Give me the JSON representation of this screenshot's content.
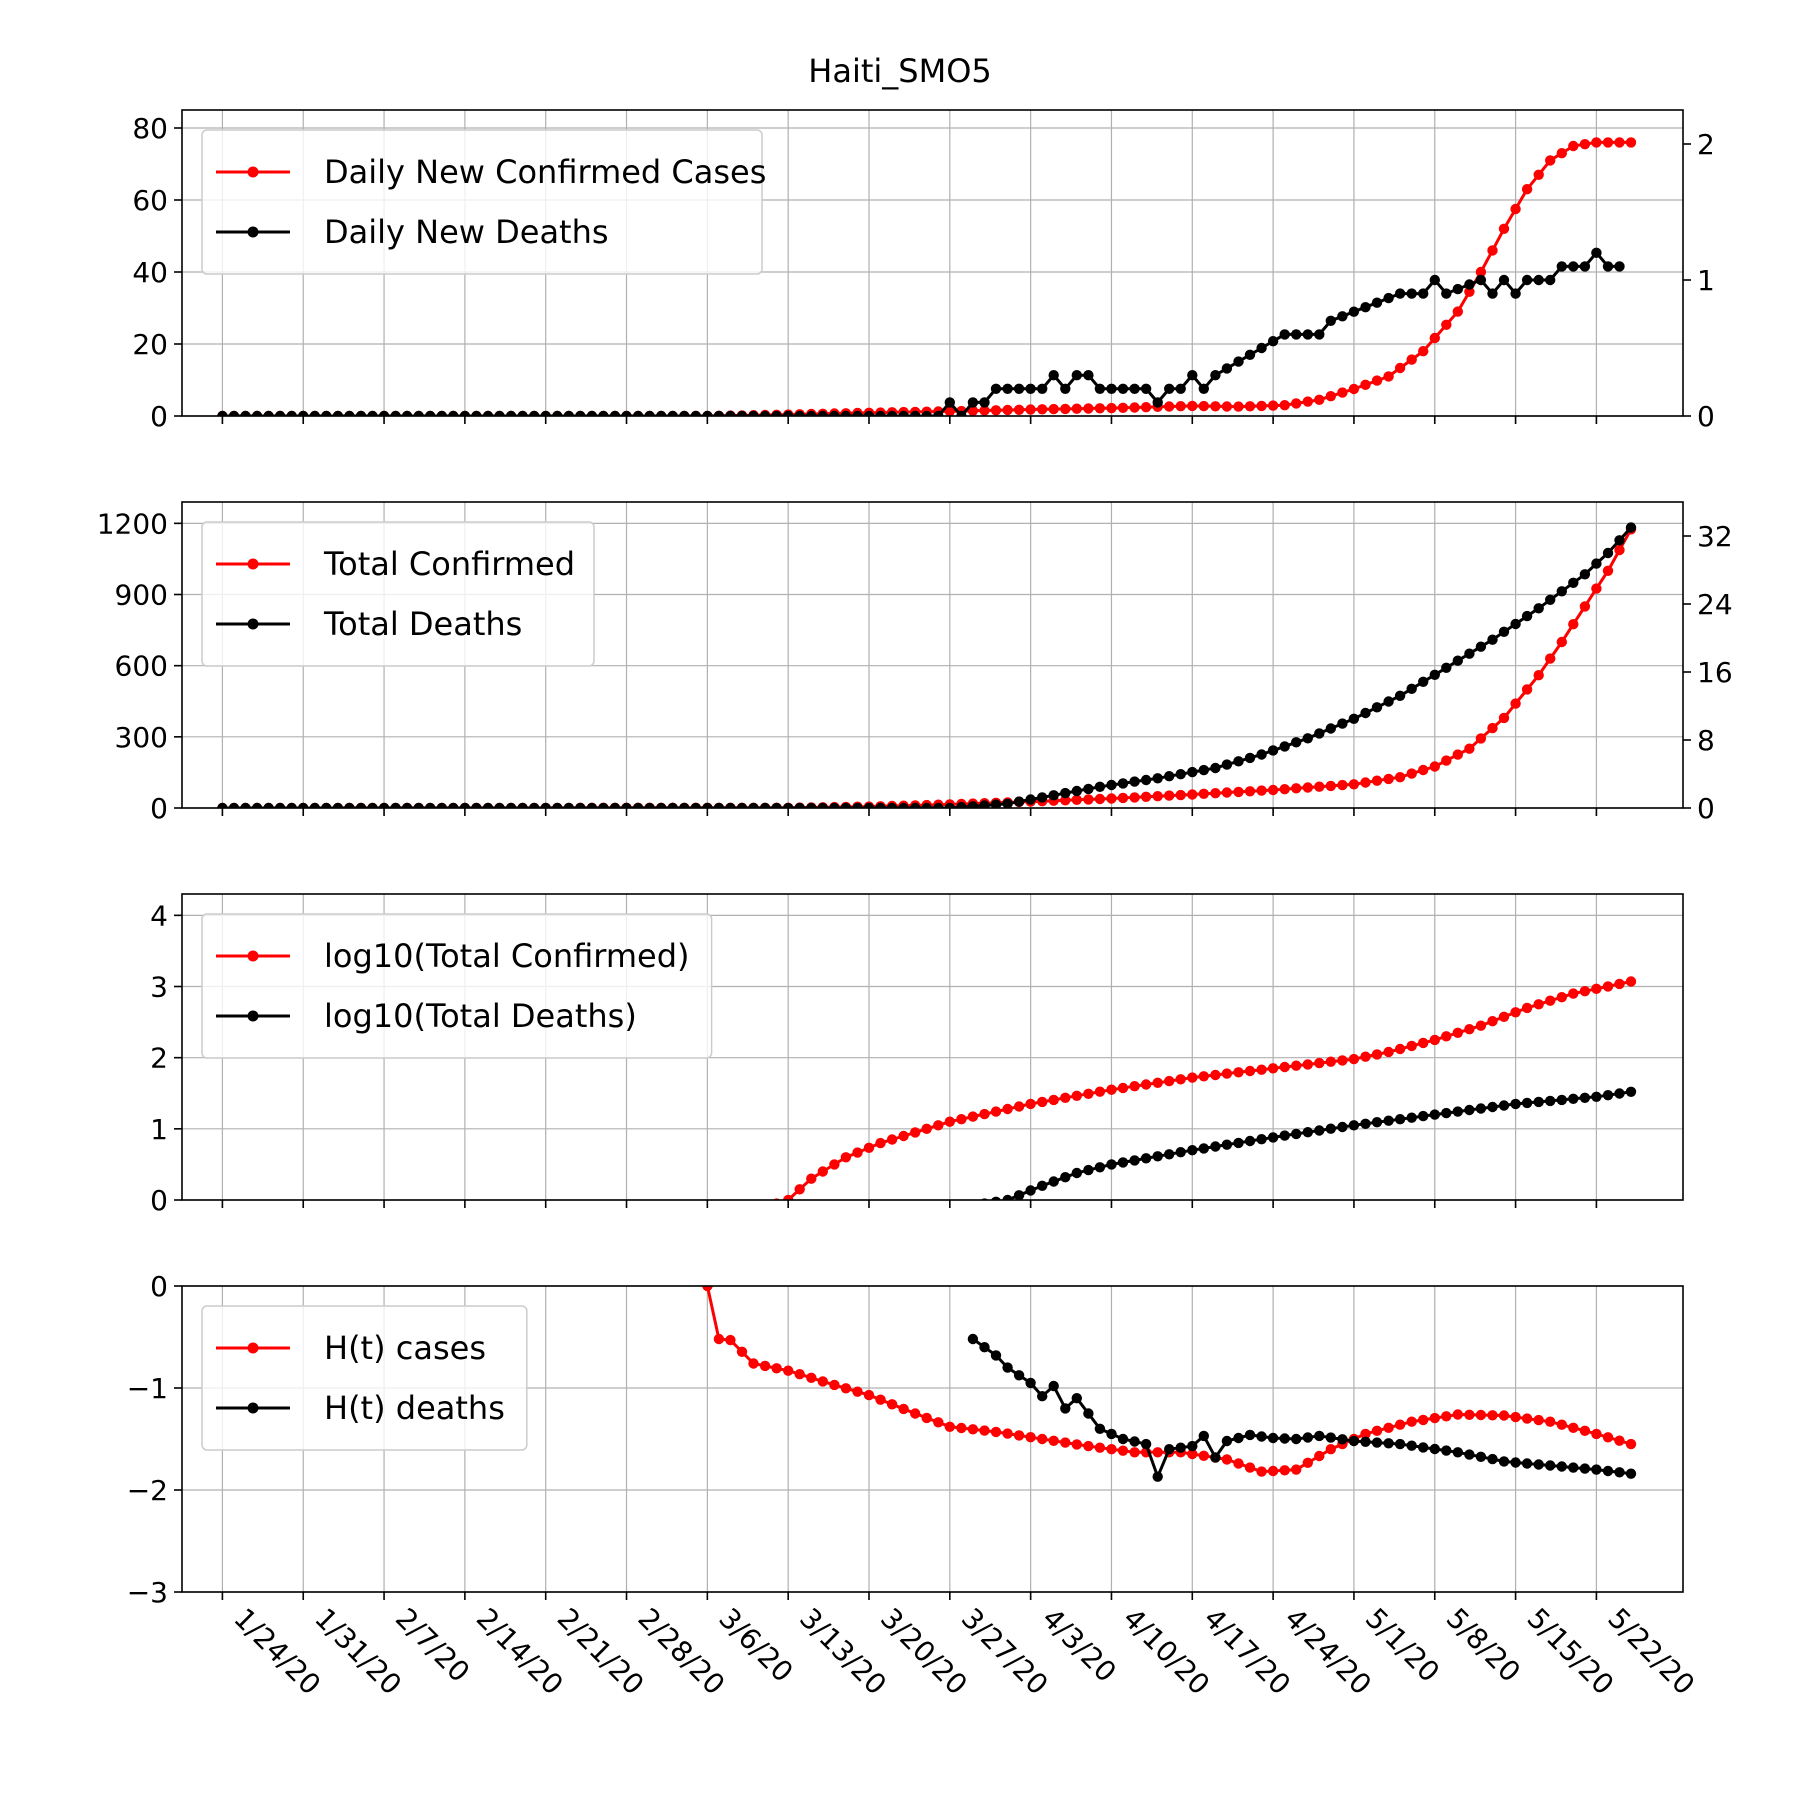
{
  "figure": {
    "title": "Haiti_SMO5"
  },
  "x_dates": [
    "1/24/20",
    "1/31/20",
    "2/7/20",
    "2/14/20",
    "2/21/20",
    "2/28/20",
    "3/6/20",
    "3/13/20",
    "3/20/20",
    "3/27/20",
    "4/3/20",
    "4/10/20",
    "4/17/20",
    "4/24/20",
    "5/1/20",
    "5/8/20",
    "5/15/20",
    "5/22/20"
  ],
  "colors": {
    "cases": "#ff0000",
    "deaths": "#000000",
    "grid": "#b0b0b0"
  },
  "chart_data": [
    {
      "type": "line",
      "title": "Haiti_SMO5",
      "x_start": "1/24/20",
      "x_end": "5/25/20",
      "ylim": [
        0,
        85
      ],
      "y_ticks": [
        0,
        20,
        40,
        60,
        80
      ],
      "ylim_right": [
        0,
        2.25
      ],
      "y_ticks_right": [
        0,
        1,
        2
      ],
      "legend": "top-left",
      "grid": true,
      "series": [
        {
          "name": "Daily New Confirmed Cases",
          "color": "#ff0000",
          "axis": "left",
          "points": [
            [
              "1/24/20",
              0
            ],
            [
              "3/6/20",
              0
            ],
            [
              "3/13/20",
              0.4
            ],
            [
              "3/20/20",
              0.9
            ],
            [
              "3/27/20",
              1.3
            ],
            [
              "4/3/20",
              1.8
            ],
            [
              "4/10/20",
              2.2
            ],
            [
              "4/17/20",
              2.8
            ],
            [
              "4/21/20",
              2.6
            ],
            [
              "4/25/20",
              3.0
            ],
            [
              "4/28/20",
              4.5
            ],
            [
              "5/1/20",
              7.5
            ],
            [
              "5/4/20",
              11
            ],
            [
              "5/7/20",
              18
            ],
            [
              "5/10/20",
              29
            ],
            [
              "5/12/20",
              40
            ],
            [
              "5/14/20",
              52
            ],
            [
              "5/16/20",
              63
            ],
            [
              "5/18/20",
              71
            ],
            [
              "5/20/20",
              75
            ],
            [
              "5/22/20",
              76
            ],
            [
              "5/25/20",
              76
            ]
          ]
        },
        {
          "name": "Daily New Deaths",
          "color": "#000000",
          "axis": "right",
          "points": [
            [
              "1/24/20",
              0
            ],
            [
              "3/26/20",
              0
            ],
            [
              "3/27/20",
              0.1
            ],
            [
              "3/28/20",
              0
            ],
            [
              "3/29/20",
              0.1
            ],
            [
              "3/30/20",
              0.1
            ],
            [
              "3/31/20",
              0.2
            ],
            [
              "4/4/20",
              0.2
            ],
            [
              "4/5/20",
              0.3
            ],
            [
              "4/6/20",
              0.2
            ],
            [
              "4/7/20",
              0.3
            ],
            [
              "4/8/20",
              0.3
            ],
            [
              "4/9/20",
              0.2
            ],
            [
              "4/13/20",
              0.2
            ],
            [
              "4/14/20",
              0.1
            ],
            [
              "4/15/20",
              0.2
            ],
            [
              "4/16/20",
              0.2
            ],
            [
              "4/17/20",
              0.3
            ],
            [
              "4/18/20",
              0.2
            ],
            [
              "4/19/20",
              0.3
            ],
            [
              "4/21/20",
              0.4
            ],
            [
              "4/23/20",
              0.5
            ],
            [
              "4/25/20",
              0.6
            ],
            [
              "4/28/20",
              0.6
            ],
            [
              "4/29/20",
              0.7
            ],
            [
              "5/2/20",
              0.8
            ],
            [
              "5/5/20",
              0.9
            ],
            [
              "5/7/20",
              0.9
            ],
            [
              "5/8/20",
              1.0
            ],
            [
              "5/9/20",
              0.9
            ],
            [
              "5/12/20",
              1.0
            ],
            [
              "5/13/20",
              0.9
            ],
            [
              "5/14/20",
              1.0
            ],
            [
              "5/15/20",
              0.9
            ],
            [
              "5/16/20",
              1.0
            ],
            [
              "5/18/20",
              1.0
            ],
            [
              "5/19/20",
              1.1
            ],
            [
              "5/21/20",
              1.1
            ],
            [
              "5/22/20",
              1.2
            ],
            [
              "5/23/20",
              1.1
            ],
            [
              "5/24/20",
              1.1
            ]
          ]
        }
      ]
    },
    {
      "type": "line",
      "x_start": "1/24/20",
      "x_end": "5/25/20",
      "ylim": [
        0,
        1290
      ],
      "y_ticks": [
        0,
        300,
        600,
        900,
        1200
      ],
      "ylim_right": [
        0,
        36
      ],
      "y_ticks_right": [
        0,
        8,
        16,
        24,
        32
      ],
      "legend": "top-left",
      "grid": true,
      "series": [
        {
          "name": "Total Confirmed",
          "color": "#ff0000",
          "axis": "left",
          "points": [
            [
              "1/24/20",
              0
            ],
            [
              "3/13/20",
              1
            ],
            [
              "3/20/20",
              6
            ],
            [
              "3/27/20",
              15
            ],
            [
              "4/3/20",
              27
            ],
            [
              "4/10/20",
              40
            ],
            [
              "4/17/20",
              57
            ],
            [
              "4/24/20",
              76
            ],
            [
              "5/1/20",
              100
            ],
            [
              "5/5/20",
              130
            ],
            [
              "5/8/20",
              175
            ],
            [
              "5/11/20",
              250
            ],
            [
              "5/14/20",
              380
            ],
            [
              "5/17/20",
              560
            ],
            [
              "5/19/20",
              700
            ],
            [
              "5/21/20",
              850
            ],
            [
              "5/23/20",
              1000
            ],
            [
              "5/25/20",
              1175
            ]
          ]
        },
        {
          "name": "Total Deaths",
          "color": "#000000",
          "axis": "right",
          "points": [
            [
              "1/24/20",
              0
            ],
            [
              "3/27/20",
              0
            ],
            [
              "4/1/20",
              0.5
            ],
            [
              "4/5/20",
              1.5
            ],
            [
              "4/9/20",
              2.5
            ],
            [
              "4/14/20",
              3.5
            ],
            [
              "4/19/20",
              4.7
            ],
            [
              "4/23/20",
              6.3
            ],
            [
              "4/27/20",
              8.2
            ],
            [
              "5/1/20",
              10.5
            ],
            [
              "5/5/20",
              13.2
            ],
            [
              "5/9/20",
              16.5
            ],
            [
              "5/13/20",
              19.8
            ],
            [
              "5/17/20",
              23.5
            ],
            [
              "5/21/20",
              27.5
            ],
            [
              "5/23/20",
              30.0
            ],
            [
              "5/25/20",
              33.0
            ]
          ]
        }
      ]
    },
    {
      "type": "line",
      "x_start": "1/24/20",
      "x_end": "5/25/20",
      "ylim": [
        0,
        4.3
      ],
      "y_ticks": [
        0,
        1,
        2,
        3,
        4
      ],
      "legend": "top-left",
      "grid": true,
      "series": [
        {
          "name": "log10(Total Confirmed)",
          "color": "#ff0000",
          "points": [
            [
              "3/12/20",
              -0.05
            ],
            [
              "3/13/20",
              0
            ],
            [
              "3/15/20",
              0.3
            ],
            [
              "3/18/20",
              0.6
            ],
            [
              "3/21/20",
              0.8
            ],
            [
              "3/27/20",
              1.1
            ],
            [
              "4/3/20",
              1.35
            ],
            [
              "4/10/20",
              1.55
            ],
            [
              "4/17/20",
              1.72
            ],
            [
              "4/24/20",
              1.85
            ],
            [
              "5/1/20",
              1.98
            ],
            [
              "5/4/20",
              2.08
            ],
            [
              "5/8/20",
              2.25
            ],
            [
              "5/12/20",
              2.45
            ],
            [
              "5/16/20",
              2.7
            ],
            [
              "5/20/20",
              2.9
            ],
            [
              "5/25/20",
              3.07
            ]
          ]
        },
        {
          "name": "log10(Total Deaths)",
          "color": "#000000",
          "points": [
            [
              "3/30/20",
              -0.05
            ],
            [
              "4/1/20",
              0
            ],
            [
              "4/4/20",
              0.2
            ],
            [
              "4/7/20",
              0.38
            ],
            [
              "4/10/20",
              0.5
            ],
            [
              "4/17/20",
              0.7
            ],
            [
              "4/24/20",
              0.88
            ],
            [
              "5/1/20",
              1.05
            ],
            [
              "5/8/20",
              1.2
            ],
            [
              "5/15/20",
              1.35
            ],
            [
              "5/22/20",
              1.45
            ],
            [
              "5/25/20",
              1.52
            ]
          ]
        }
      ]
    },
    {
      "type": "line",
      "x_start": "1/24/20",
      "x_end": "5/25/20",
      "ylim": [
        -3,
        0
      ],
      "y_ticks": [
        -3,
        -2,
        -1,
        0
      ],
      "legend": "top-left",
      "grid": true,
      "series": [
        {
          "name": "H(t) cases",
          "color": "#ff0000",
          "points": [
            [
              "3/6/20",
              0
            ],
            [
              "3/7/20",
              -0.52
            ],
            [
              "3/8/20",
              -0.53
            ],
            [
              "3/10/20",
              -0.76
            ],
            [
              "3/13/20",
              -0.83
            ],
            [
              "3/17/20",
              -0.97
            ],
            [
              "3/20/20",
              -1.07
            ],
            [
              "3/24/20",
              -1.25
            ],
            [
              "3/27/20",
              -1.38
            ],
            [
              "3/31/20",
              -1.43
            ],
            [
              "4/4/20",
              -1.5
            ],
            [
              "4/8/20",
              -1.57
            ],
            [
              "4/12/20",
              -1.63
            ],
            [
              "4/16/20",
              -1.63
            ],
            [
              "4/20/20",
              -1.7
            ],
            [
              "4/23/20",
              -1.82
            ],
            [
              "4/26/20",
              -1.8
            ],
            [
              "4/29/20",
              -1.6
            ],
            [
              "5/2/20",
              -1.45
            ],
            [
              "5/6/20",
              -1.33
            ],
            [
              "5/10/20",
              -1.26
            ],
            [
              "5/14/20",
              -1.27
            ],
            [
              "5/18/20",
              -1.33
            ],
            [
              "5/22/20",
              -1.45
            ],
            [
              "5/25/20",
              -1.55
            ]
          ]
        },
        {
          "name": "H(t) deaths",
          "color": "#000000",
          "points": [
            [
              "3/29/20",
              -0.52
            ],
            [
              "3/30/20",
              -0.6
            ],
            [
              "3/31/20",
              -0.68
            ],
            [
              "4/1/20",
              -0.8
            ],
            [
              "4/3/20",
              -0.95
            ],
            [
              "4/4/20",
              -1.08
            ],
            [
              "4/5/20",
              -0.98
            ],
            [
              "4/6/20",
              -1.2
            ],
            [
              "4/7/20",
              -1.1
            ],
            [
              "4/8/20",
              -1.25
            ],
            [
              "4/9/20",
              -1.4
            ],
            [
              "4/11/20",
              -1.5
            ],
            [
              "4/13/20",
              -1.55
            ],
            [
              "4/14/20",
              -1.87
            ],
            [
              "4/15/20",
              -1.6
            ],
            [
              "4/17/20",
              -1.57
            ],
            [
              "4/18/20",
              -1.47
            ],
            [
              "4/19/20",
              -1.68
            ],
            [
              "4/20/20",
              -1.52
            ],
            [
              "4/22/20",
              -1.46
            ],
            [
              "4/24/20",
              -1.49
            ],
            [
              "4/26/20",
              -1.5
            ],
            [
              "4/28/20",
              -1.47
            ],
            [
              "5/1/20",
              -1.52
            ],
            [
              "5/5/20",
              -1.55
            ],
            [
              "5/10/20",
              -1.63
            ],
            [
              "5/14/20",
              -1.72
            ],
            [
              "5/18/20",
              -1.76
            ],
            [
              "5/22/20",
              -1.8
            ],
            [
              "5/25/20",
              -1.84
            ]
          ]
        }
      ]
    }
  ]
}
